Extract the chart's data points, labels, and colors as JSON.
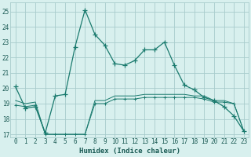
{
  "xlabel": "Humidex (Indice chaleur)",
  "background_color": "#d8f0ee",
  "grid_color": "#a8cccc",
  "line_color": "#1a7a6e",
  "xlim": [
    -0.5,
    23.5
  ],
  "ylim": [
    16.8,
    25.6
  ],
  "yticks": [
    17,
    18,
    19,
    20,
    21,
    22,
    23,
    24,
    25
  ],
  "xticks": [
    0,
    1,
    2,
    3,
    4,
    5,
    6,
    7,
    8,
    9,
    10,
    11,
    12,
    13,
    14,
    15,
    16,
    17,
    18,
    19,
    20,
    21,
    22,
    23
  ],
  "series1_x": [
    0,
    1,
    2,
    3,
    4,
    5,
    6,
    7,
    8,
    9,
    10,
    11,
    12,
    13,
    14,
    15,
    16,
    17,
    18,
    19,
    20,
    21,
    22,
    23
  ],
  "series1_y": [
    20.1,
    18.7,
    18.8,
    17.1,
    19.5,
    19.6,
    22.7,
    25.1,
    23.5,
    22.8,
    21.6,
    21.5,
    21.8,
    22.5,
    22.5,
    23.0,
    21.5,
    20.2,
    19.9,
    19.4,
    19.2,
    18.8,
    18.2,
    17.2
  ],
  "series2_x": [
    0,
    1,
    2,
    3,
    4,
    5,
    6,
    7,
    8,
    9,
    10,
    11,
    12,
    13,
    14,
    15,
    16,
    17,
    18,
    19,
    20,
    21,
    22,
    23
  ],
  "series2_y": [
    18.9,
    18.8,
    18.9,
    17.0,
    17.0,
    17.0,
    17.0,
    17.0,
    19.0,
    19.0,
    19.3,
    19.3,
    19.3,
    19.4,
    19.4,
    19.4,
    19.4,
    19.4,
    19.4,
    19.3,
    19.1,
    19.1,
    19.0,
    17.2
  ],
  "series3_x": [
    0,
    1,
    2,
    3,
    4,
    5,
    6,
    7,
    8,
    9,
    10,
    11,
    12,
    13,
    14,
    15,
    16,
    17,
    18,
    19,
    20,
    21,
    22,
    23
  ],
  "series3_y": [
    19.2,
    19.0,
    19.1,
    17.0,
    17.0,
    17.0,
    17.0,
    17.0,
    19.2,
    19.2,
    19.5,
    19.5,
    19.5,
    19.6,
    19.6,
    19.6,
    19.6,
    19.6,
    19.5,
    19.5,
    19.2,
    19.2,
    19.0,
    17.2
  ]
}
